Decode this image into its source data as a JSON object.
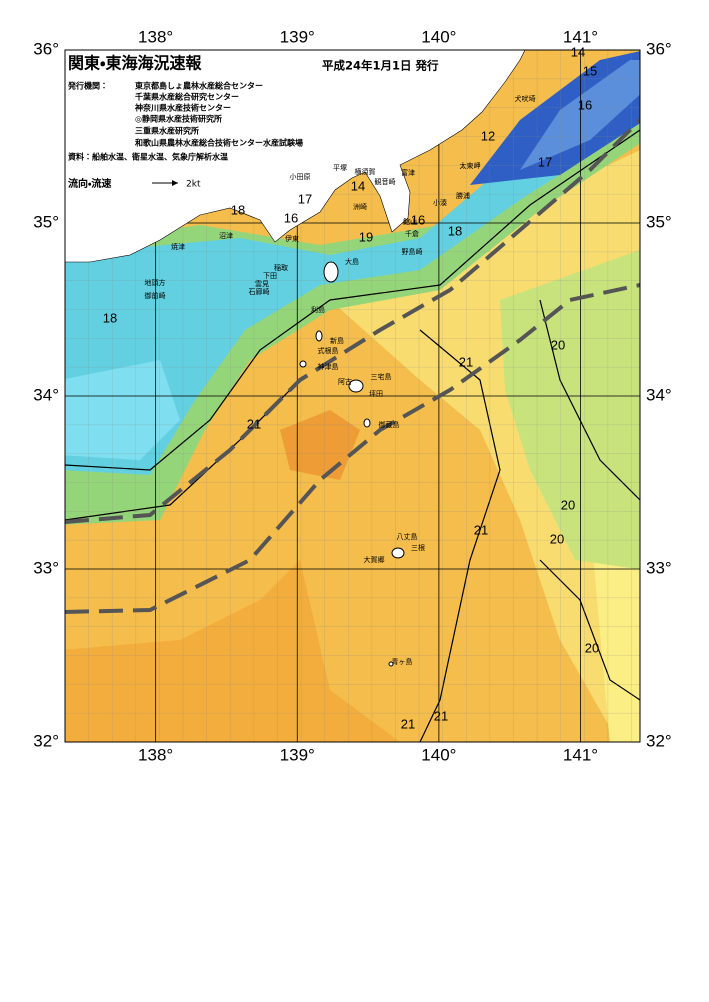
{
  "header": {
    "title": "関東・東海海況速報",
    "date": "平成24年1月1日 発行"
  },
  "info": {
    "agency_label": "発行機関：",
    "agencies": [
      "東京都島しょ農林水産総合センター",
      "千葉県水産総合研究センター",
      "神奈川県水産技術センター",
      "◎静岡県水産技術研究所",
      "三重県水産研究所",
      "和歌山県農林水産総合技術センター水産試験場"
    ],
    "source": "資料：船舶水温、衛星水温、気象庁解析水温"
  },
  "legend": {
    "label": "流向・流速",
    "scale": "2kt"
  },
  "map": {
    "xlim": [
      137.36,
      141.42
    ],
    "ylim": [
      32,
      36
    ],
    "lon_ticks": [
      {
        "value": 138,
        "label": "138°"
      },
      {
        "value": 139,
        "label": "139°"
      },
      {
        "value": 140,
        "label": "140°"
      },
      {
        "value": 141,
        "label": "141°"
      }
    ],
    "lat_ticks": [
      {
        "value": 36,
        "label": "36°"
      },
      {
        "value": 35,
        "label": "35°"
      },
      {
        "value": 34,
        "label": "34°"
      },
      {
        "value": 33,
        "label": "33°"
      },
      {
        "value": 32,
        "label": "32°"
      }
    ],
    "place_names": [
      "小田原",
      "平塚",
      "横須賀",
      "観音崎",
      "富津",
      "洲崎",
      "館山",
      "千倉",
      "野島崎",
      "小湊",
      "勝浦",
      "太東岬",
      "犬吠埼",
      "沼津",
      "焼津",
      "伊東",
      "稲取",
      "下田",
      "雲見",
      "石廊崎",
      "地頭方",
      "御前崎",
      "大島",
      "利島",
      "新島",
      "式根島",
      "神津島",
      "三宅島",
      "阿古",
      "坪田",
      "御蔵島",
      "八丈島",
      "三根",
      "大賀郷",
      "青ヶ島"
    ],
    "isotherm_labels": [
      14,
      15,
      16,
      12,
      17,
      18,
      17,
      16,
      14,
      16,
      18,
      19,
      18,
      21,
      20,
      21,
      20,
      21,
      20,
      20,
      21,
      21
    ]
  }
}
